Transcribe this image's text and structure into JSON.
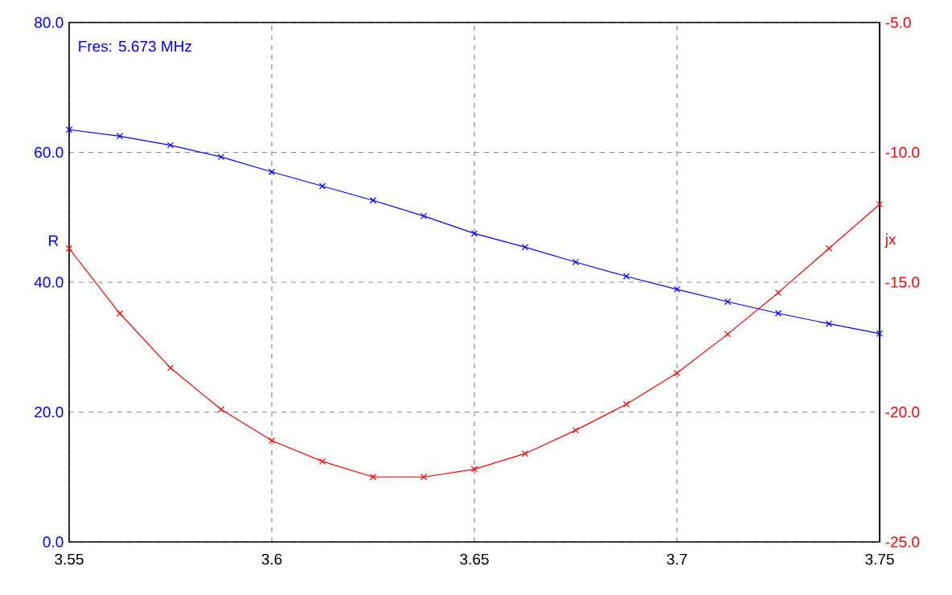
{
  "chart_data": {
    "type": "line",
    "x": [
      3.55,
      3.5625,
      3.575,
      3.5875,
      3.6,
      3.6125,
      3.625,
      3.6375,
      3.65,
      3.6625,
      3.675,
      3.6875,
      3.7,
      3.7125,
      3.725,
      3.7375,
      3.75
    ],
    "series": [
      {
        "color": "#0000ff",
        "values": [
          63.5,
          62.5,
          61.1,
          59.3,
          57.0,
          54.8,
          52.6,
          50.2,
          47.5,
          45.4,
          43.1,
          40.9,
          38.9,
          37.0,
          35.2,
          33.6,
          32.1
        ]
      },
      {
        "color": "#ff0000",
        "axis": "y2",
        "values": [
          -13.7,
          -16.2,
          -18.3,
          -19.9,
          -21.1,
          -21.9,
          -22.5,
          -22.5,
          -22.2,
          -21.6,
          -20.7,
          -19.7,
          -18.5,
          -17.0,
          -15.4,
          -13.7,
          -12.0
        ]
      }
    ],
    "ylabel": "R",
    "y2label": "jx",
    "annotations": [
      "Fres: 5.673 MHz"
    ],
    "xlim": [
      3.55,
      3.75
    ],
    "xticks": [
      3.55,
      3.6,
      3.65,
      3.7,
      3.75
    ],
    "ylim": [
      0,
      80
    ],
    "yticks": [
      {
        "value": 0,
        "label": "0.0"
      },
      {
        "value": 20,
        "label": "20.0"
      },
      {
        "value": 40,
        "label": "40.0"
      },
      {
        "value": 60,
        "label": "60.0"
      },
      {
        "value": 80,
        "label": "80.0"
      }
    ],
    "y2lim": [
      -25,
      -5
    ],
    "y2ticks": [
      {
        "value": -25,
        "label": "-25.0"
      },
      {
        "value": -20,
        "label": "-20.0"
      },
      {
        "value": -15,
        "label": "-15.0"
      },
      {
        "value": -10,
        "label": "-10.0"
      },
      {
        "value": -5,
        "label": "-5.0"
      }
    ],
    "grid": true,
    "marker": "cross",
    "line_style": "solid"
  }
}
